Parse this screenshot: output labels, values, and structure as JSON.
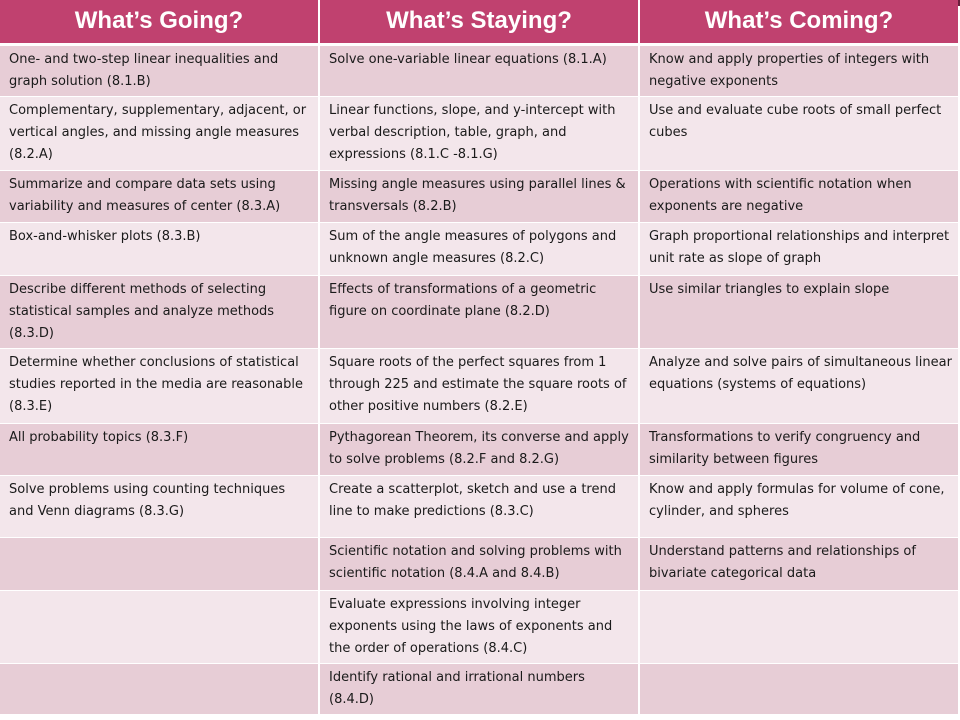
{
  "table": {
    "headers": [
      "What’s Going?",
      "What’s Staying?",
      "What’s Coming?"
    ],
    "rows": [
      [
        "One- and two-step linear inequalities and graph solution  (8.1.B)",
        "Solve one-variable linear equations (8.1.A)",
        "Know and apply properties of integers with negative exponents"
      ],
      [
        "Complementary, supplementary, adjacent, or vertical angles, and missing angle measures (8.2.A)",
        "Linear functions, slope, and y-intercept with verbal description, table, graph, and expressions (8.1.C -8.1.G)",
        "Use and evaluate cube roots of small perfect cubes"
      ],
      [
        "Summarize and compare data sets using variability and measures of center (8.3.A)",
        "Missing angle measures using parallel lines & transversals (8.2.B)",
        "Operations with scientific notation when exponents are negative"
      ],
      [
        "Box-and-whisker plots (8.3.B)",
        "Sum of the angle measures of polygons and unknown angle measures (8.2.C)",
        "Graph proportional relationships and interpret unit rate as slope of graph"
      ],
      [
        "Describe different methods of selecting statistical samples and analyze methods (8.3.D)",
        "Effects of transformations of a geometric figure on coordinate plane (8.2.D)",
        "Use similar triangles to explain slope"
      ],
      [
        "Determine whether conclusions of statistical studies reported in the media are reasonable (8.3.E)",
        "Square roots of the perfect squares from 1 through 225 and estimate the square roots of other positive numbers (8.2.E)",
        "Analyze and solve pairs of simultaneous linear equations (systems of equations)"
      ],
      [
        "All probability topics (8.3.F)",
        "Pythagorean Theorem, its converse and apply to solve problems (8.2.F and 8.2.G)",
        "Transformations to verify congruency and similarity between figures"
      ],
      [
        "Solve problems using counting techniques and Venn diagrams (8.3.G)",
        "Create a scatterplot, sketch and use a trend line to make predictions (8.3.C)",
        "Know and apply formulas for volume of cone, cylinder, and spheres"
      ],
      [
        "",
        "Scientific notation and solving problems with scientific notation (8.4.A and 8.4.B)",
        "Understand patterns and relationships of bivariate categorical data"
      ],
      [
        "",
        "Evaluate expressions involving integer exponents using the laws of exponents and the order of operations (8.4.C)",
        ""
      ],
      [
        "",
        "Identify rational and irrational numbers (8.4.D)",
        ""
      ]
    ]
  },
  "colors": {
    "header_bg": "#c0416f",
    "row_dark": "#e7cdd6",
    "row_light": "#f3e6eb",
    "corner_mark": "#6a1f3c"
  }
}
